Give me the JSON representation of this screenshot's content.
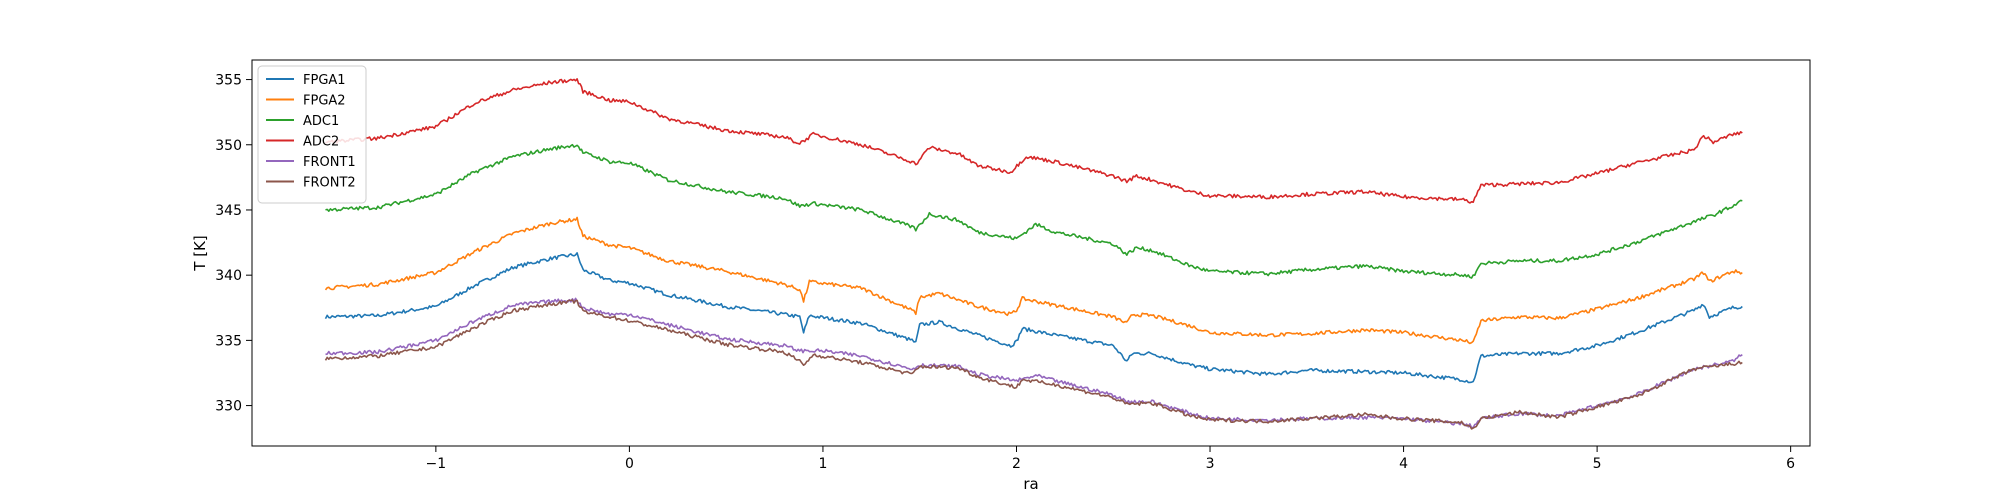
{
  "chart_data": {
    "type": "line",
    "title": "",
    "xlabel": "ra",
    "ylabel": "T [K]",
    "xlim": [
      -1.95,
      6.1
    ],
    "ylim": [
      326.9,
      356.5
    ],
    "xticks": [
      -1,
      0,
      1,
      2,
      3,
      4,
      5,
      6
    ],
    "yticks": [
      330,
      335,
      340,
      345,
      350,
      355
    ],
    "grid": false,
    "legend_position": "top-left",
    "series": [
      {
        "name": "FPGA1",
        "color": "#1f77b4",
        "points": [
          [
            -1.57,
            336.8
          ],
          [
            -1.3,
            336.9
          ],
          [
            -1.0,
            337.6
          ],
          [
            -0.8,
            339.2
          ],
          [
            -0.6,
            340.6
          ],
          [
            -0.4,
            341.3
          ],
          [
            -0.27,
            341.6
          ],
          [
            -0.24,
            340.4
          ],
          [
            -0.1,
            339.6
          ],
          [
            0.0,
            339.4
          ],
          [
            0.2,
            338.5
          ],
          [
            0.5,
            337.6
          ],
          [
            0.8,
            337.0
          ],
          [
            0.88,
            336.8
          ],
          [
            0.9,
            335.6
          ],
          [
            0.93,
            336.9
          ],
          [
            1.2,
            336.3
          ],
          [
            1.46,
            335.0
          ],
          [
            1.48,
            334.8
          ],
          [
            1.5,
            336.2
          ],
          [
            1.6,
            336.4
          ],
          [
            1.8,
            335.4
          ],
          [
            1.97,
            334.6
          ],
          [
            2.0,
            334.9
          ],
          [
            2.03,
            335.9
          ],
          [
            2.2,
            335.4
          ],
          [
            2.5,
            334.6
          ],
          [
            2.57,
            333.4
          ],
          [
            2.6,
            334.0
          ],
          [
            2.7,
            334.0
          ],
          [
            2.9,
            333.1
          ],
          [
            3.0,
            332.8
          ],
          [
            3.3,
            332.4
          ],
          [
            3.5,
            332.7
          ],
          [
            3.8,
            332.6
          ],
          [
            4.0,
            332.5
          ],
          [
            4.3,
            332.0
          ],
          [
            4.36,
            331.8
          ],
          [
            4.4,
            333.8
          ],
          [
            4.6,
            334.0
          ],
          [
            4.8,
            334.0
          ],
          [
            5.0,
            334.6
          ],
          [
            5.2,
            335.6
          ],
          [
            5.5,
            337.3
          ],
          [
            5.55,
            337.8
          ],
          [
            5.58,
            336.8
          ],
          [
            5.7,
            337.5
          ],
          [
            5.75,
            337.6
          ]
        ]
      },
      {
        "name": "FPGA2",
        "color": "#ff7f0e",
        "points": [
          [
            -1.57,
            339.0
          ],
          [
            -1.3,
            339.3
          ],
          [
            -1.0,
            340.2
          ],
          [
            -0.8,
            341.8
          ],
          [
            -0.6,
            343.2
          ],
          [
            -0.4,
            344.0
          ],
          [
            -0.27,
            344.3
          ],
          [
            -0.24,
            343.0
          ],
          [
            -0.1,
            342.3
          ],
          [
            0.0,
            342.1
          ],
          [
            0.2,
            341.1
          ],
          [
            0.5,
            340.3
          ],
          [
            0.8,
            339.3
          ],
          [
            0.88,
            338.9
          ],
          [
            0.9,
            338.0
          ],
          [
            0.93,
            339.5
          ],
          [
            1.2,
            339.0
          ],
          [
            1.46,
            337.3
          ],
          [
            1.48,
            337.1
          ],
          [
            1.5,
            338.3
          ],
          [
            1.6,
            338.6
          ],
          [
            1.8,
            337.6
          ],
          [
            1.97,
            337.0
          ],
          [
            2.0,
            337.3
          ],
          [
            2.03,
            338.2
          ],
          [
            2.2,
            337.7
          ],
          [
            2.5,
            336.8
          ],
          [
            2.57,
            336.3
          ],
          [
            2.6,
            337.0
          ],
          [
            2.7,
            336.9
          ],
          [
            2.9,
            336.1
          ],
          [
            3.0,
            335.6
          ],
          [
            3.3,
            335.4
          ],
          [
            3.5,
            335.5
          ],
          [
            3.8,
            335.8
          ],
          [
            4.0,
            335.6
          ],
          [
            4.3,
            335.0
          ],
          [
            4.36,
            334.8
          ],
          [
            4.4,
            336.5
          ],
          [
            4.6,
            336.8
          ],
          [
            4.8,
            336.7
          ],
          [
            5.0,
            337.4
          ],
          [
            5.2,
            338.2
          ],
          [
            5.5,
            339.7
          ],
          [
            5.55,
            340.2
          ],
          [
            5.58,
            339.5
          ],
          [
            5.7,
            340.3
          ],
          [
            5.75,
            340.2
          ]
        ]
      },
      {
        "name": "ADC1",
        "color": "#2ca02c",
        "points": [
          [
            -1.57,
            345.0
          ],
          [
            -1.3,
            345.2
          ],
          [
            -1.0,
            346.2
          ],
          [
            -0.8,
            347.9
          ],
          [
            -0.6,
            349.1
          ],
          [
            -0.4,
            349.7
          ],
          [
            -0.27,
            350.0
          ],
          [
            -0.24,
            349.4
          ],
          [
            -0.1,
            348.7
          ],
          [
            0.0,
            348.6
          ],
          [
            0.2,
            347.3
          ],
          [
            0.5,
            346.4
          ],
          [
            0.8,
            345.9
          ],
          [
            0.88,
            345.3
          ],
          [
            0.95,
            345.5
          ],
          [
            1.2,
            345.0
          ],
          [
            1.46,
            343.7
          ],
          [
            1.48,
            343.5
          ],
          [
            1.55,
            344.7
          ],
          [
            1.7,
            344.2
          ],
          [
            1.8,
            343.3
          ],
          [
            2.0,
            342.8
          ],
          [
            2.1,
            343.9
          ],
          [
            2.2,
            343.3
          ],
          [
            2.5,
            342.4
          ],
          [
            2.57,
            341.6
          ],
          [
            2.62,
            342.1
          ],
          [
            2.7,
            341.9
          ],
          [
            2.9,
            340.7
          ],
          [
            3.0,
            340.3
          ],
          [
            3.3,
            340.1
          ],
          [
            3.5,
            340.4
          ],
          [
            3.8,
            340.7
          ],
          [
            4.0,
            340.3
          ],
          [
            4.3,
            340.0
          ],
          [
            4.36,
            339.9
          ],
          [
            4.4,
            340.9
          ],
          [
            4.6,
            341.1
          ],
          [
            4.8,
            341.1
          ],
          [
            5.0,
            341.6
          ],
          [
            5.2,
            342.5
          ],
          [
            5.5,
            344.1
          ],
          [
            5.6,
            344.6
          ],
          [
            5.7,
            345.3
          ],
          [
            5.75,
            345.7
          ]
        ]
      },
      {
        "name": "ADC2",
        "color": "#d62728",
        "points": [
          [
            -1.57,
            350.2
          ],
          [
            -1.3,
            350.5
          ],
          [
            -1.0,
            351.4
          ],
          [
            -0.8,
            353.2
          ],
          [
            -0.6,
            354.2
          ],
          [
            -0.4,
            354.8
          ],
          [
            -0.27,
            355.0
          ],
          [
            -0.24,
            354.1
          ],
          [
            -0.1,
            353.4
          ],
          [
            0.0,
            353.3
          ],
          [
            0.2,
            352.0
          ],
          [
            0.5,
            351.1
          ],
          [
            0.8,
            350.6
          ],
          [
            0.88,
            350.1
          ],
          [
            0.95,
            350.8
          ],
          [
            1.2,
            350.0
          ],
          [
            1.46,
            348.7
          ],
          [
            1.48,
            348.5
          ],
          [
            1.55,
            349.8
          ],
          [
            1.7,
            349.3
          ],
          [
            1.8,
            348.4
          ],
          [
            1.97,
            347.9
          ],
          [
            2.05,
            349.1
          ],
          [
            2.2,
            348.7
          ],
          [
            2.5,
            347.6
          ],
          [
            2.57,
            347.2
          ],
          [
            2.62,
            347.6
          ],
          [
            2.7,
            347.3
          ],
          [
            2.9,
            346.4
          ],
          [
            3.0,
            346.1
          ],
          [
            3.3,
            346.0
          ],
          [
            3.5,
            346.2
          ],
          [
            3.8,
            346.4
          ],
          [
            4.0,
            346.0
          ],
          [
            4.3,
            345.8
          ],
          [
            4.36,
            345.6
          ],
          [
            4.4,
            346.9
          ],
          [
            4.6,
            347.0
          ],
          [
            4.8,
            347.1
          ],
          [
            5.0,
            347.8
          ],
          [
            5.2,
            348.6
          ],
          [
            5.5,
            349.6
          ],
          [
            5.55,
            350.7
          ],
          [
            5.6,
            350.2
          ],
          [
            5.7,
            350.8
          ],
          [
            5.75,
            350.9
          ]
        ]
      },
      {
        "name": "FRONT1",
        "color": "#9467bd",
        "points": [
          [
            -1.57,
            334.0
          ],
          [
            -1.3,
            334.1
          ],
          [
            -1.0,
            335.0
          ],
          [
            -0.8,
            336.5
          ],
          [
            -0.6,
            337.7
          ],
          [
            -0.4,
            338.0
          ],
          [
            -0.27,
            338.1
          ],
          [
            -0.24,
            337.5
          ],
          [
            -0.1,
            337.0
          ],
          [
            0.0,
            337.0
          ],
          [
            0.2,
            336.2
          ],
          [
            0.5,
            335.1
          ],
          [
            0.8,
            334.6
          ],
          [
            0.88,
            334.2
          ],
          [
            1.0,
            334.2
          ],
          [
            1.2,
            333.8
          ],
          [
            1.46,
            332.8
          ],
          [
            1.5,
            333.1
          ],
          [
            1.7,
            333.0
          ],
          [
            1.8,
            332.4
          ],
          [
            2.0,
            331.9
          ],
          [
            2.1,
            332.3
          ],
          [
            2.2,
            331.9
          ],
          [
            2.5,
            330.8
          ],
          [
            2.57,
            330.3
          ],
          [
            2.7,
            330.3
          ],
          [
            2.9,
            329.4
          ],
          [
            3.0,
            329.0
          ],
          [
            3.3,
            328.9
          ],
          [
            3.5,
            329.0
          ],
          [
            3.8,
            329.1
          ],
          [
            4.0,
            329.0
          ],
          [
            4.3,
            328.6
          ],
          [
            4.36,
            328.4
          ],
          [
            4.4,
            329.0
          ],
          [
            4.6,
            329.4
          ],
          [
            4.8,
            329.2
          ],
          [
            5.0,
            330.0
          ],
          [
            5.2,
            330.8
          ],
          [
            5.5,
            332.8
          ],
          [
            5.7,
            333.4
          ],
          [
            5.75,
            333.9
          ]
        ]
      },
      {
        "name": "FRONT2",
        "color": "#8c564b",
        "points": [
          [
            -1.57,
            333.6
          ],
          [
            -1.3,
            333.8
          ],
          [
            -1.0,
            334.5
          ],
          [
            -0.8,
            336.0
          ],
          [
            -0.6,
            337.3
          ],
          [
            -0.4,
            337.8
          ],
          [
            -0.27,
            338.0
          ],
          [
            -0.24,
            337.2
          ],
          [
            -0.1,
            336.8
          ],
          [
            0.0,
            336.5
          ],
          [
            0.2,
            335.8
          ],
          [
            0.5,
            334.7
          ],
          [
            0.8,
            334.1
          ],
          [
            0.88,
            333.4
          ],
          [
            0.9,
            333.1
          ],
          [
            0.95,
            333.9
          ],
          [
            1.2,
            333.3
          ],
          [
            1.46,
            332.4
          ],
          [
            1.5,
            333.0
          ],
          [
            1.7,
            332.9
          ],
          [
            1.8,
            332.2
          ],
          [
            2.0,
            331.4
          ],
          [
            2.03,
            332.0
          ],
          [
            2.2,
            331.6
          ],
          [
            2.5,
            330.6
          ],
          [
            2.57,
            330.1
          ],
          [
            2.7,
            330.2
          ],
          [
            2.9,
            329.2
          ],
          [
            3.0,
            328.9
          ],
          [
            3.3,
            328.8
          ],
          [
            3.5,
            329.0
          ],
          [
            3.8,
            329.3
          ],
          [
            4.0,
            329.0
          ],
          [
            4.3,
            328.7
          ],
          [
            4.36,
            328.2
          ],
          [
            4.4,
            329.0
          ],
          [
            4.6,
            329.5
          ],
          [
            4.8,
            329.1
          ],
          [
            5.0,
            329.9
          ],
          [
            5.2,
            330.7
          ],
          [
            5.5,
            332.8
          ],
          [
            5.7,
            333.2
          ],
          [
            5.75,
            333.3
          ]
        ]
      }
    ]
  }
}
